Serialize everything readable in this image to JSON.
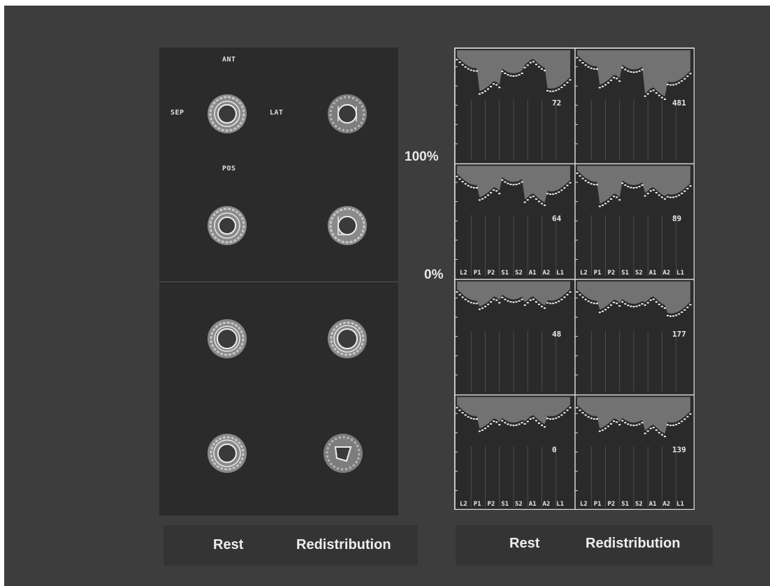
{
  "orientation": {
    "anterior": "ANT",
    "septal": "SEP",
    "lateral": "LAT",
    "posterior": "POS"
  },
  "captions": {
    "scans_rest": "Rest",
    "scans_redistribution": "Redistribution",
    "plots_rest": "Rest",
    "plots_redistribution": "Redistribution"
  },
  "percent_scale": {
    "top": "100%",
    "bottom": "0%"
  },
  "segment_labels": [
    "L2",
    "P1",
    "P2",
    "S1",
    "S2",
    "A1",
    "A2",
    "L1"
  ],
  "plot_rows": [
    {
      "rest_value": "72",
      "redistribution_value": "481"
    },
    {
      "rest_value": "64",
      "redistribution_value": "89"
    },
    {
      "rest_value": "48",
      "redistribution_value": "177"
    },
    {
      "rest_value": "0",
      "redistribution_value": "139"
    }
  ],
  "colors": {
    "background": "#3d3d3d",
    "panel": "#2b2b2b",
    "curve_fill": "#7a7a7a",
    "trace": "#f2f2f2"
  }
}
